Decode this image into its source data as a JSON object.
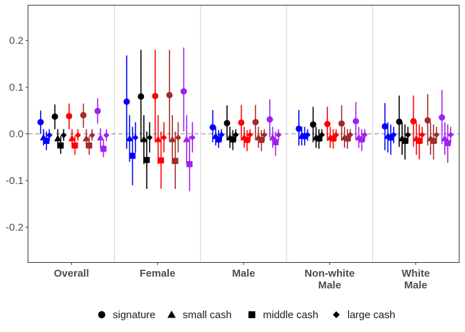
{
  "chart_data": {
    "type": "scatter",
    "title": "",
    "xlabel": "",
    "ylabel": "",
    "ylim": [
      -0.275,
      0.275
    ],
    "yticks": [
      -0.2,
      -0.1,
      0.0,
      0.1,
      0.2
    ],
    "ytick_labels": [
      "-0.2",
      "-0.1",
      "0.0",
      "0.1",
      "0.2"
    ],
    "reference_line": 0,
    "grid": "vertical separators between groups",
    "legend_position": "bottom",
    "colors": {
      "c1": "#0000ff",
      "c2": "#000000",
      "c3": "#ff0000",
      "c4": "#a52a2a",
      "c5": "#a020f0"
    },
    "color_order": [
      "c1",
      "c2",
      "c3",
      "c4",
      "c5"
    ],
    "legend": [
      {
        "shape": "circle",
        "label": "signature"
      },
      {
        "shape": "triangle",
        "label": "small cash"
      },
      {
        "shape": "square",
        "label": "middle cash"
      },
      {
        "shape": "diamond",
        "label": "large cash"
      }
    ],
    "groups": [
      {
        "label_lines": [
          "Overall"
        ],
        "points": [
          {
            "color": "c1",
            "shape": "circle",
            "y": 0.025,
            "lo": 0.0,
            "hi": 0.05
          },
          {
            "color": "c1",
            "shape": "triangle",
            "y": -0.008,
            "lo": -0.025,
            "hi": 0.01
          },
          {
            "color": "c1",
            "shape": "square",
            "y": -0.015,
            "lo": -0.035,
            "hi": 0.005
          },
          {
            "color": "c1",
            "shape": "diamond",
            "y": -0.003,
            "lo": -0.015,
            "hi": 0.01
          },
          {
            "color": "c2",
            "shape": "circle",
            "y": 0.037,
            "lo": 0.01,
            "hi": 0.063
          },
          {
            "color": "c2",
            "shape": "triangle",
            "y": -0.01,
            "lo": -0.03,
            "hi": 0.01
          },
          {
            "color": "c2",
            "shape": "square",
            "y": -0.025,
            "lo": -0.043,
            "hi": -0.005
          },
          {
            "color": "c2",
            "shape": "diamond",
            "y": -0.003,
            "lo": -0.015,
            "hi": 0.01
          },
          {
            "color": "c3",
            "shape": "circle",
            "y": 0.038,
            "lo": 0.01,
            "hi": 0.065
          },
          {
            "color": "c3",
            "shape": "triangle",
            "y": -0.01,
            "lo": -0.03,
            "hi": 0.01
          },
          {
            "color": "c3",
            "shape": "square",
            "y": -0.025,
            "lo": -0.045,
            "hi": -0.005
          },
          {
            "color": "c3",
            "shape": "diamond",
            "y": -0.003,
            "lo": -0.015,
            "hi": 0.01
          },
          {
            "color": "c4",
            "shape": "circle",
            "y": 0.04,
            "lo": 0.013,
            "hi": 0.065
          },
          {
            "color": "c4",
            "shape": "triangle",
            "y": -0.01,
            "lo": -0.03,
            "hi": 0.01
          },
          {
            "color": "c4",
            "shape": "square",
            "y": -0.025,
            "lo": -0.045,
            "hi": -0.005
          },
          {
            "color": "c4",
            "shape": "diamond",
            "y": -0.003,
            "lo": -0.015,
            "hi": 0.01
          },
          {
            "color": "c5",
            "shape": "circle",
            "y": 0.049,
            "lo": 0.022,
            "hi": 0.076
          },
          {
            "color": "c5",
            "shape": "triangle",
            "y": -0.008,
            "lo": -0.03,
            "hi": 0.012
          },
          {
            "color": "c5",
            "shape": "square",
            "y": -0.032,
            "lo": -0.05,
            "hi": -0.012
          },
          {
            "color": "c5",
            "shape": "diamond",
            "y": -0.003,
            "lo": -0.015,
            "hi": 0.01
          }
        ]
      },
      {
        "label_lines": [
          "Female"
        ],
        "points": [
          {
            "color": "c1",
            "shape": "circle",
            "y": 0.069,
            "lo": -0.032,
            "hi": 0.168
          },
          {
            "color": "c1",
            "shape": "triangle",
            "y": -0.01,
            "lo": -0.06,
            "hi": 0.04
          },
          {
            "color": "c1",
            "shape": "square",
            "y": -0.047,
            "lo": -0.11,
            "hi": 0.015
          },
          {
            "color": "c1",
            "shape": "diamond",
            "y": -0.008,
            "lo": -0.04,
            "hi": 0.025
          },
          {
            "color": "c2",
            "shape": "circle",
            "y": 0.08,
            "lo": -0.018,
            "hi": 0.18
          },
          {
            "color": "c2",
            "shape": "triangle",
            "y": -0.012,
            "lo": -0.065,
            "hi": 0.04
          },
          {
            "color": "c2",
            "shape": "square",
            "y": -0.056,
            "lo": -0.118,
            "hi": 0.005
          },
          {
            "color": "c2",
            "shape": "diamond",
            "y": -0.008,
            "lo": -0.04,
            "hi": 0.025
          },
          {
            "color": "c3",
            "shape": "circle",
            "y": 0.081,
            "lo": -0.018,
            "hi": 0.18
          },
          {
            "color": "c3",
            "shape": "triangle",
            "y": -0.012,
            "lo": -0.065,
            "hi": 0.04
          },
          {
            "color": "c3",
            "shape": "square",
            "y": -0.057,
            "lo": -0.118,
            "hi": 0.005
          },
          {
            "color": "c3",
            "shape": "diamond",
            "y": -0.008,
            "lo": -0.04,
            "hi": 0.025
          },
          {
            "color": "c4",
            "shape": "circle",
            "y": 0.083,
            "lo": -0.015,
            "hi": 0.18
          },
          {
            "color": "c4",
            "shape": "triangle",
            "y": -0.012,
            "lo": -0.065,
            "hi": 0.04
          },
          {
            "color": "c4",
            "shape": "square",
            "y": -0.058,
            "lo": -0.118,
            "hi": 0.005
          },
          {
            "color": "c4",
            "shape": "diamond",
            "y": -0.008,
            "lo": -0.04,
            "hi": 0.025
          },
          {
            "color": "c5",
            "shape": "circle",
            "y": 0.091,
            "lo": 0.005,
            "hi": 0.185
          },
          {
            "color": "c5",
            "shape": "triangle",
            "y": -0.012,
            "lo": -0.065,
            "hi": 0.04
          },
          {
            "color": "c5",
            "shape": "square",
            "y": -0.065,
            "lo": -0.123,
            "hi": -0.005
          },
          {
            "color": "c5",
            "shape": "diamond",
            "y": -0.008,
            "lo": -0.04,
            "hi": 0.025
          }
        ]
      },
      {
        "label_lines": [
          "Male"
        ],
        "points": [
          {
            "color": "c1",
            "shape": "circle",
            "y": 0.014,
            "lo": -0.018,
            "hi": 0.051
          },
          {
            "color": "c1",
            "shape": "triangle",
            "y": -0.005,
            "lo": -0.025,
            "hi": 0.015
          },
          {
            "color": "c1",
            "shape": "square",
            "y": -0.012,
            "lo": -0.03,
            "hi": 0.008
          },
          {
            "color": "c1",
            "shape": "diamond",
            "y": -0.002,
            "lo": -0.015,
            "hi": 0.01
          },
          {
            "color": "c2",
            "shape": "circle",
            "y": 0.023,
            "lo": -0.012,
            "hi": 0.061
          },
          {
            "color": "c2",
            "shape": "triangle",
            "y": -0.008,
            "lo": -0.03,
            "hi": 0.015
          },
          {
            "color": "c2",
            "shape": "square",
            "y": -0.012,
            "lo": -0.035,
            "hi": 0.008
          },
          {
            "color": "c2",
            "shape": "diamond",
            "y": -0.002,
            "lo": -0.015,
            "hi": 0.01
          },
          {
            "color": "c3",
            "shape": "circle",
            "y": 0.024,
            "lo": -0.012,
            "hi": 0.062
          },
          {
            "color": "c3",
            "shape": "triangle",
            "y": -0.008,
            "lo": -0.03,
            "hi": 0.015
          },
          {
            "color": "c3",
            "shape": "square",
            "y": -0.013,
            "lo": -0.037,
            "hi": 0.008
          },
          {
            "color": "c3",
            "shape": "diamond",
            "y": -0.002,
            "lo": -0.015,
            "hi": 0.01
          },
          {
            "color": "c4",
            "shape": "circle",
            "y": 0.025,
            "lo": -0.012,
            "hi": 0.062
          },
          {
            "color": "c4",
            "shape": "triangle",
            "y": -0.008,
            "lo": -0.03,
            "hi": 0.015
          },
          {
            "color": "c4",
            "shape": "square",
            "y": -0.013,
            "lo": -0.037,
            "hi": 0.008
          },
          {
            "color": "c4",
            "shape": "diamond",
            "y": -0.002,
            "lo": -0.015,
            "hi": 0.01
          },
          {
            "color": "c5",
            "shape": "circle",
            "y": 0.031,
            "lo": -0.008,
            "hi": 0.074
          },
          {
            "color": "c5",
            "shape": "triangle",
            "y": -0.008,
            "lo": -0.03,
            "hi": 0.015
          },
          {
            "color": "c5",
            "shape": "square",
            "y": -0.018,
            "lo": -0.047,
            "hi": 0.005
          },
          {
            "color": "c5",
            "shape": "diamond",
            "y": -0.002,
            "lo": -0.015,
            "hi": 0.01
          }
        ]
      },
      {
        "label_lines": [
          "Non-white",
          "Male"
        ],
        "points": [
          {
            "color": "c1",
            "shape": "circle",
            "y": 0.011,
            "lo": -0.025,
            "hi": 0.051
          },
          {
            "color": "c1",
            "shape": "triangle",
            "y": -0.005,
            "lo": -0.025,
            "hi": 0.015
          },
          {
            "color": "c1",
            "shape": "square",
            "y": -0.005,
            "lo": -0.025,
            "hi": 0.015
          },
          {
            "color": "c1",
            "shape": "diamond",
            "y": -0.002,
            "lo": -0.015,
            "hi": 0.01
          },
          {
            "color": "c2",
            "shape": "circle",
            "y": 0.02,
            "lo": -0.018,
            "hi": 0.058
          },
          {
            "color": "c2",
            "shape": "triangle",
            "y": -0.008,
            "lo": -0.03,
            "hi": 0.015
          },
          {
            "color": "c2",
            "shape": "square",
            "y": -0.01,
            "lo": -0.032,
            "hi": 0.01
          },
          {
            "color": "c2",
            "shape": "diamond",
            "y": -0.002,
            "lo": -0.015,
            "hi": 0.01
          },
          {
            "color": "c3",
            "shape": "circle",
            "y": 0.021,
            "lo": -0.015,
            "hi": 0.058
          },
          {
            "color": "c3",
            "shape": "triangle",
            "y": -0.008,
            "lo": -0.03,
            "hi": 0.015
          },
          {
            "color": "c3",
            "shape": "square",
            "y": -0.01,
            "lo": -0.032,
            "hi": 0.01
          },
          {
            "color": "c3",
            "shape": "diamond",
            "y": -0.002,
            "lo": -0.015,
            "hi": 0.01
          },
          {
            "color": "c4",
            "shape": "circle",
            "y": 0.022,
            "lo": -0.015,
            "hi": 0.061
          },
          {
            "color": "c4",
            "shape": "triangle",
            "y": -0.008,
            "lo": -0.03,
            "hi": 0.015
          },
          {
            "color": "c4",
            "shape": "square",
            "y": -0.01,
            "lo": -0.032,
            "hi": 0.01
          },
          {
            "color": "c4",
            "shape": "diamond",
            "y": -0.002,
            "lo": -0.015,
            "hi": 0.01
          },
          {
            "color": "c5",
            "shape": "circle",
            "y": 0.027,
            "lo": -0.012,
            "hi": 0.068
          },
          {
            "color": "c5",
            "shape": "triangle",
            "y": -0.008,
            "lo": -0.03,
            "hi": 0.015
          },
          {
            "color": "c5",
            "shape": "square",
            "y": -0.012,
            "lo": -0.037,
            "hi": 0.01
          },
          {
            "color": "c5",
            "shape": "diamond",
            "y": -0.002,
            "lo": -0.015,
            "hi": 0.01
          }
        ]
      },
      {
        "label_lines": [
          "White",
          "Male"
        ],
        "points": [
          {
            "color": "c1",
            "shape": "circle",
            "y": 0.016,
            "lo": -0.035,
            "hi": 0.066
          },
          {
            "color": "c1",
            "shape": "triangle",
            "y": -0.005,
            "lo": -0.04,
            "hi": 0.025
          },
          {
            "color": "c1",
            "shape": "square",
            "y": -0.008,
            "lo": -0.045,
            "hi": 0.02
          },
          {
            "color": "c1",
            "shape": "diamond",
            "y": -0.002,
            "lo": -0.02,
            "hi": 0.015
          },
          {
            "color": "c2",
            "shape": "circle",
            "y": 0.026,
            "lo": -0.028,
            "hi": 0.082
          },
          {
            "color": "c2",
            "shape": "triangle",
            "y": -0.01,
            "lo": -0.045,
            "hi": 0.025
          },
          {
            "color": "c2",
            "shape": "square",
            "y": -0.015,
            "lo": -0.055,
            "hi": 0.02
          },
          {
            "color": "c2",
            "shape": "diamond",
            "y": -0.002,
            "lo": -0.02,
            "hi": 0.015
          },
          {
            "color": "c3",
            "shape": "circle",
            "y": 0.027,
            "lo": -0.028,
            "hi": 0.082
          },
          {
            "color": "c3",
            "shape": "triangle",
            "y": -0.01,
            "lo": -0.045,
            "hi": 0.025
          },
          {
            "color": "c3",
            "shape": "square",
            "y": -0.015,
            "lo": -0.055,
            "hi": 0.02
          },
          {
            "color": "c3",
            "shape": "diamond",
            "y": -0.002,
            "lo": -0.02,
            "hi": 0.015
          },
          {
            "color": "c4",
            "shape": "circle",
            "y": 0.029,
            "lo": -0.025,
            "hi": 0.085
          },
          {
            "color": "c4",
            "shape": "triangle",
            "y": -0.01,
            "lo": -0.045,
            "hi": 0.025
          },
          {
            "color": "c4",
            "shape": "square",
            "y": -0.015,
            "lo": -0.055,
            "hi": 0.02
          },
          {
            "color": "c4",
            "shape": "diamond",
            "y": -0.002,
            "lo": -0.02,
            "hi": 0.015
          },
          {
            "color": "c5",
            "shape": "circle",
            "y": 0.035,
            "lo": -0.022,
            "hi": 0.094
          },
          {
            "color": "c5",
            "shape": "triangle",
            "y": -0.01,
            "lo": -0.045,
            "hi": 0.025
          },
          {
            "color": "c5",
            "shape": "square",
            "y": -0.02,
            "lo": -0.062,
            "hi": 0.02
          },
          {
            "color": "c5",
            "shape": "diamond",
            "y": -0.002,
            "lo": -0.02,
            "hi": 0.015
          }
        ]
      }
    ]
  }
}
